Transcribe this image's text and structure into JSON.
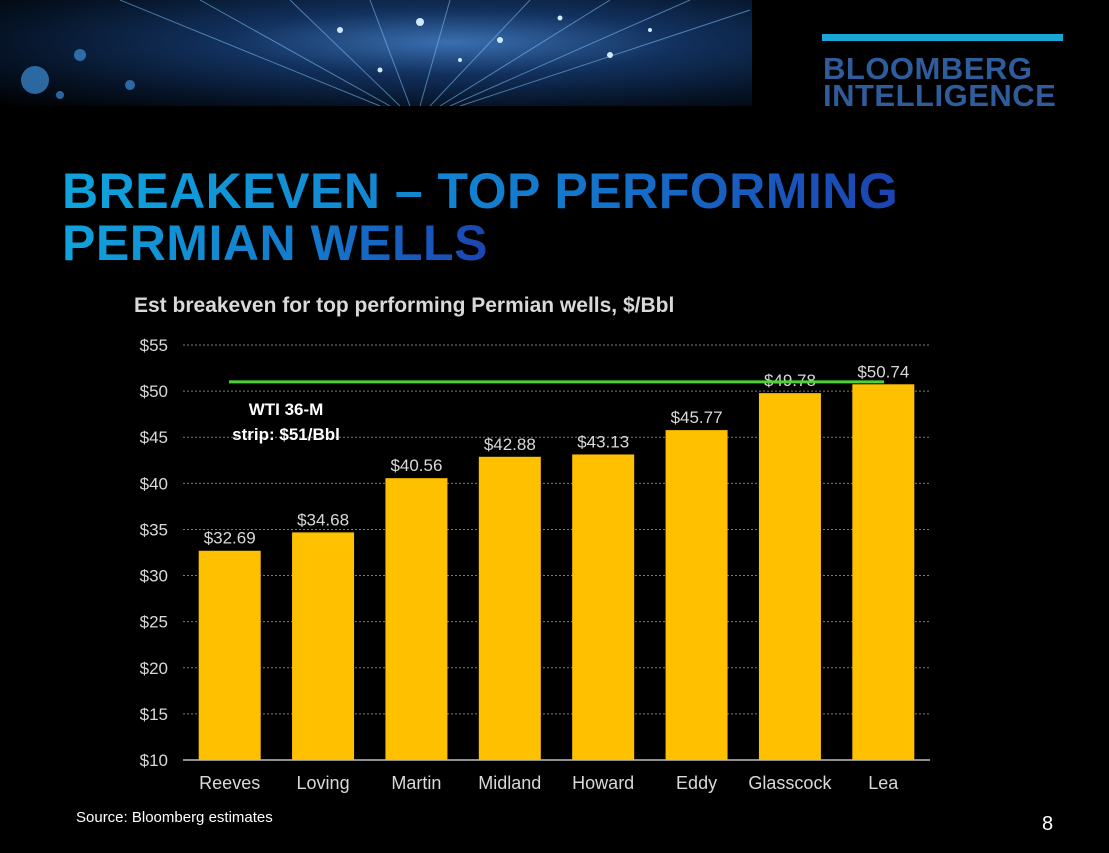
{
  "header": {
    "logo_line1": "BLOOMBERG",
    "logo_line2": "INTELLIGENCE",
    "title_line1": "BREAKEVEN – TOP PERFORMING",
    "title_line2": "PERMIAN WELLS"
  },
  "footer": {
    "source": "Source: Bloomberg estimates",
    "page_number": "8"
  },
  "colors": {
    "bar": "#FFC000",
    "reference_line": "#4CD137",
    "title_blue": "#1478CC",
    "logo_blue": "#2F5D9C",
    "logo_bar": "#19A7D8"
  },
  "chart_data": {
    "type": "bar",
    "title": "Est breakeven for top performing Permian wells, $/Bbl",
    "categories": [
      "Reeves",
      "Loving",
      "Martin",
      "Midland",
      "Howard",
      "Eddy",
      "Glasscock",
      "Lea"
    ],
    "values": [
      32.69,
      34.68,
      40.56,
      42.88,
      43.13,
      45.77,
      49.78,
      50.74
    ],
    "data_labels": [
      "$32.69",
      "$34.68",
      "$40.56",
      "$42.88",
      "$43.13",
      "$45.77",
      "$49.78",
      "$50.74"
    ],
    "ylim": [
      10,
      55
    ],
    "yticks": [
      10,
      15,
      20,
      25,
      30,
      35,
      40,
      45,
      50,
      55
    ],
    "ytick_labels": [
      "$10",
      "$15",
      "$20",
      "$25",
      "$30",
      "$35",
      "$40",
      "$45",
      "$50",
      "$55"
    ],
    "grid": true,
    "reference_line": {
      "value": 51,
      "label_line1": "WTI 36-M",
      "label_line2": "strip: $51/Bbl"
    }
  }
}
